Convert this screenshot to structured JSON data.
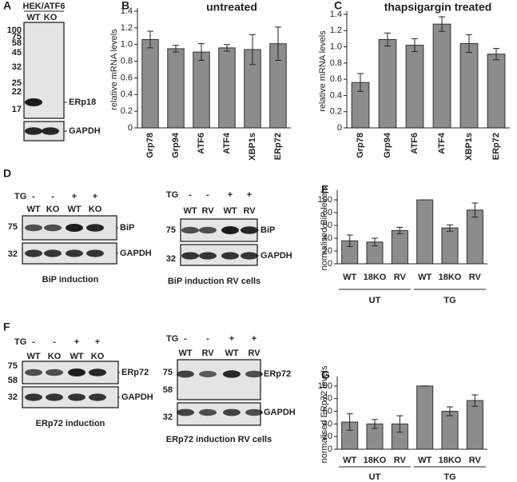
{
  "panel_labels": [
    "A",
    "B",
    "C",
    "D",
    "E",
    "F",
    "G"
  ],
  "blots": [
    {
      "header": "HEK/ATF6",
      "lanes": [
        "WT",
        "KO"
      ],
      "markers": [
        100,
        75,
        58,
        45,
        32,
        25,
        22,
        17
      ],
      "bands": [
        "ERp18",
        "GAPDH"
      ]
    },
    {
      "treatment_label": "TG",
      "treatment": [
        "-",
        "-",
        "+",
        "+"
      ],
      "lanes": [
        "WT",
        "KO",
        "WT",
        "KO"
      ],
      "markers": [
        75,
        32
      ],
      "bands": [
        "BiP",
        "GAPDH"
      ],
      "caption": "BiP induction"
    },
    {
      "treatment_label": "TG",
      "treatment": [
        "-",
        "-",
        "+",
        "+"
      ],
      "lanes": [
        "WT",
        "RV",
        "WT",
        "RV"
      ],
      "markers": [
        75,
        32
      ],
      "bands": [
        "BiP",
        "GAPDH"
      ],
      "caption": "BiP induction RV cells"
    },
    {
      "treatment_label": "TG",
      "treatment": [
        "-",
        "-",
        "+",
        "+"
      ],
      "lanes": [
        "WT",
        "KO",
        "WT",
        "KO"
      ],
      "markers": [
        75,
        58,
        32
      ],
      "bands": [
        "ERp72",
        "GAPDH"
      ],
      "caption": "ERp72 induction"
    },
    {
      "treatment_label": "TG",
      "treatment": [
        "-",
        "-",
        "+",
        "+"
      ],
      "lanes": [
        "WT",
        "RV",
        "WT",
        "RV"
      ],
      "markers": [
        75,
        58,
        32
      ],
      "bands": [
        "ERp72",
        "GAPDH"
      ],
      "caption": "ERp72 induction RV cells"
    }
  ],
  "chart_data": [
    {
      "type": "bar",
      "title": "untreated",
      "y_label": "relative mRNA levels",
      "categories": [
        "Grp78",
        "Grp94",
        "ATF6",
        "ATF4",
        "XBP1s",
        "ERp72"
      ],
      "values": [
        1.06,
        0.95,
        0.91,
        0.96,
        0.94,
        1.01
      ],
      "errors": [
        0.1,
        0.04,
        0.1,
        0.04,
        0.18,
        0.2
      ],
      "color": "#8c8c8c",
      "ylim": [
        0,
        1.4
      ],
      "yticks": [
        0,
        0.2,
        0.4,
        0.6,
        0.8,
        {
          "value": 1,
          "label": "1.0"
        },
        1.2,
        1.4
      ]
    },
    {
      "type": "bar",
      "title": "thapsigargin treated",
      "y_label": "relative mRNA levels",
      "categories": [
        "Grp78",
        "Grp94",
        "ATF6",
        "ATF4",
        "XBP1s",
        "ERp72"
      ],
      "values": [
        0.56,
        1.09,
        1.02,
        1.28,
        1.04,
        0.91
      ],
      "errors": [
        0.11,
        0.08,
        0.08,
        0.09,
        0.11,
        0.07
      ],
      "color": "#8c8c8c",
      "ylim": [
        0,
        1.4
      ],
      "yticks": [
        0,
        0.2,
        0.4,
        0.6,
        0.8,
        {
          "value": 1,
          "label": "1.0"
        },
        1.2,
        1.4
      ]
    },
    {
      "type": "bar",
      "y_label": "normalised BiP levels",
      "categories": [
        "WT",
        "18KO",
        "RV",
        "WT",
        "18KO",
        "RV"
      ],
      "groups": [
        "UT",
        "TG"
      ],
      "values": [
        36,
        34,
        52,
        100,
        56,
        84
      ],
      "errors": [
        9,
        6,
        5,
        0,
        5,
        11
      ],
      "color": "#8c8c8c",
      "ylim": [
        0,
        110
      ],
      "yticks": [
        0,
        20,
        40,
        60,
        80,
        100
      ]
    },
    {
      "type": "bar",
      "y_label": "normalised ERp72 levels",
      "categories": [
        "WT",
        "18KO",
        "RV",
        "WT",
        "18KO",
        "RV"
      ],
      "groups": [
        "UT",
        "TG"
      ],
      "values": [
        43,
        40,
        40,
        100,
        60,
        77
      ],
      "errors": [
        13,
        7,
        13,
        0,
        7,
        9
      ],
      "color": "#8c8c8c",
      "ylim": [
        0,
        110
      ],
      "yticks": [
        0,
        20,
        40,
        60,
        80,
        100
      ]
    }
  ]
}
